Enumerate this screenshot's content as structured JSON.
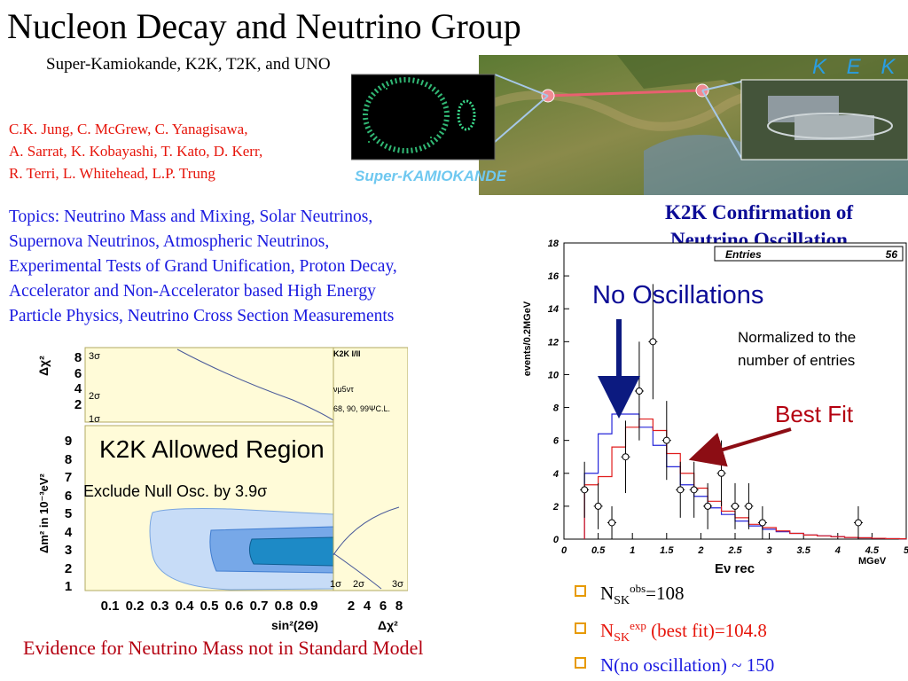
{
  "title": "Nucleon Decay and Neutrino Group",
  "subtitle": "Super-Kamiokande, K2K, T2K, and UNO",
  "authors": [
    "C.K. Jung, C. McGrew, C. Yanagisawa,",
    "A. Sarrat, K. Kobayashi, T. Kato, D. Kerr,",
    "R. Terri, L. Whitehead, L.P. Trung"
  ],
  "topics": [
    "Topics: Neutrino Mass and Mixing, Solar Neutrinos,",
    "Supernova Neutrinos, Atmospheric Neutrinos,",
    "Experimental Tests of Grand Unification, Proton Decay,",
    "Accelerator and Non-Accelerator based High Energy",
    "Particle Physics, Neutrino Cross Section Measurements"
  ],
  "map": {
    "kek_label": "K E K",
    "sk_label": "Super-KAMIOKANDE"
  },
  "k2k_heading": [
    "K2K Confirmation of",
    "Neutrino Oscillation"
  ],
  "allowed_plot": {
    "title": "K2K Allowed Region",
    "subtitle": "Exclude Null Osc. by 3.9σ",
    "panel_label": "K2K I/II",
    "channel": "νμ5ντ",
    "cl_label": "68, 90, 99ΨC.L.",
    "dchi2_axis": "Δχ²",
    "dm2_axis": "Δm² in 10⁻³eV²",
    "sin_axis": "sin²(2Θ)",
    "sigma_levels": [
      "3σ",
      "2σ",
      "1σ"
    ],
    "dchi2_ticks": [
      "8",
      "6",
      "4",
      "2"
    ],
    "dm2_ticks": [
      "9",
      "8",
      "7",
      "6",
      "5",
      "4",
      "3",
      "2",
      "1"
    ],
    "sin_ticks": [
      "0.1",
      "0.2",
      "0.3",
      "0.4",
      "0.5",
      "0.6",
      "0.7",
      "0.8",
      "0.9"
    ],
    "right_ticks": [
      "2",
      "4",
      "6",
      "8"
    ]
  },
  "chart_data": {
    "type": "histogram",
    "title": "",
    "xlabel": "Eν rec",
    "x_unit": "MGeV",
    "ylabel": "events/0.2MGeV",
    "xlim": [
      0,
      5
    ],
    "ylim": [
      0,
      18
    ],
    "x_ticks": [
      "0",
      "0.5",
      "1",
      "1.5",
      "2",
      "2.5",
      "3",
      "3.5",
      "4",
      "4.5",
      "5"
    ],
    "y_ticks": [
      "0",
      "2",
      "4",
      "6",
      "8",
      "10",
      "12",
      "14",
      "16",
      "18"
    ],
    "stats_box": {
      "label": "Entries",
      "value": "56"
    },
    "bin_edges": [
      0.3,
      0.5,
      0.7,
      0.9,
      1.1,
      1.3,
      1.5,
      1.7,
      1.9,
      2.1,
      2.3,
      2.5,
      2.7,
      2.9,
      3.1,
      3.3,
      3.5,
      3.7,
      3.9,
      4.1,
      4.3,
      4.5,
      4.7,
      4.9,
      5.0
    ],
    "series": [
      {
        "name": "No Oscillations",
        "color": "#2626d9",
        "values": [
          4.0,
          6.4,
          7.6,
          7.6,
          6.8,
          5.7,
          4.4,
          3.3,
          2.6,
          1.9,
          1.5,
          1.1,
          0.8,
          0.6,
          0.45,
          0.35,
          0.25,
          0.2,
          0.15,
          0.1,
          0.08,
          0.05,
          0.03,
          0.02
        ]
      },
      {
        "name": "Best Fit",
        "color": "#e01c1c",
        "values": [
          3.3,
          3.8,
          5.6,
          6.8,
          7.3,
          6.6,
          5.2,
          4.0,
          3.1,
          2.3,
          1.7,
          1.3,
          0.9,
          0.7,
          0.5,
          0.35,
          0.25,
          0.2,
          0.15,
          0.1,
          0.08,
          0.05,
          0.03,
          0.02
        ]
      }
    ],
    "data_points": [
      {
        "x": 0.3,
        "y": 3,
        "err": 1.7
      },
      {
        "x": 0.5,
        "y": 2,
        "err": 1.4
      },
      {
        "x": 0.7,
        "y": 1,
        "err": 1.0
      },
      {
        "x": 0.9,
        "y": 5,
        "err": 2.2
      },
      {
        "x": 1.1,
        "y": 9,
        "err": 3.0
      },
      {
        "x": 1.3,
        "y": 12,
        "err": 3.5
      },
      {
        "x": 1.5,
        "y": 6,
        "err": 2.4
      },
      {
        "x": 1.7,
        "y": 3,
        "err": 1.7
      },
      {
        "x": 1.9,
        "y": 3,
        "err": 1.7
      },
      {
        "x": 2.1,
        "y": 2,
        "err": 1.4
      },
      {
        "x": 2.3,
        "y": 4,
        "err": 2.0
      },
      {
        "x": 2.5,
        "y": 2,
        "err": 1.4
      },
      {
        "x": 2.7,
        "y": 2,
        "err": 1.4
      },
      {
        "x": 2.9,
        "y": 1,
        "err": 1.0
      },
      {
        "x": 4.3,
        "y": 1,
        "err": 1.0
      }
    ],
    "annotations": [
      "No Oscillations",
      "Best Fit",
      "Normalized to the",
      "number of entries"
    ]
  },
  "bullets": [
    {
      "main": "N",
      "sub": "SK",
      "sup": "obs",
      "tail": "=108",
      "color": "#000000"
    },
    {
      "main": "N",
      "sub": "SK",
      "sup": "exp",
      "tail": " (best fit)=104.8",
      "color": "#e6140a"
    },
    {
      "main": "N(no oscillation) ~ 150",
      "sub": "",
      "sup": "",
      "tail": "",
      "color": "#1a1ae0"
    }
  ],
  "footer": "Evidence for Neutrino Mass not in Standard Model"
}
